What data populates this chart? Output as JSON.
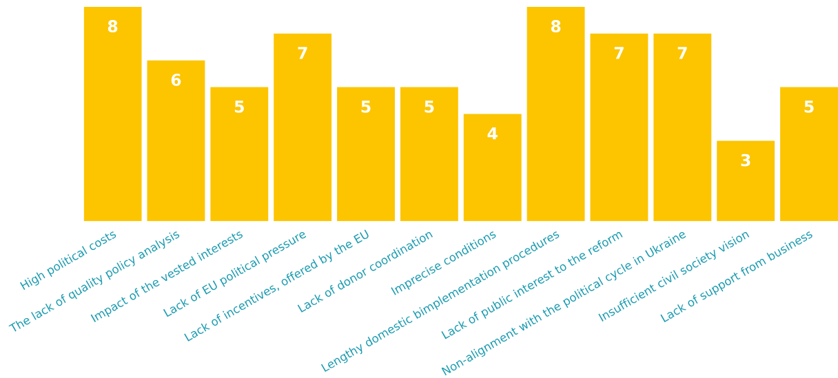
{
  "chart_data": {
    "type": "bar",
    "categories": [
      "High political costs",
      "The lack of quality policy analysis",
      "Impact of the vested interests",
      "Lack of EU political pressure",
      "Lack of incentives, offered by the EU",
      "Lack of donor coordination",
      "Imprecise conditions",
      "Lengthy domestic bimplementation procedures",
      "Lack of public interest to the reform",
      "Non-alignment with the political cycle in Ukraine",
      "Insufficient civil society vision",
      "Lack of support from business"
    ],
    "values": [
      8,
      6,
      5,
      7,
      5,
      5,
      4,
      8,
      7,
      7,
      3,
      5
    ],
    "color": "#fcc500",
    "data_labels": true
  }
}
